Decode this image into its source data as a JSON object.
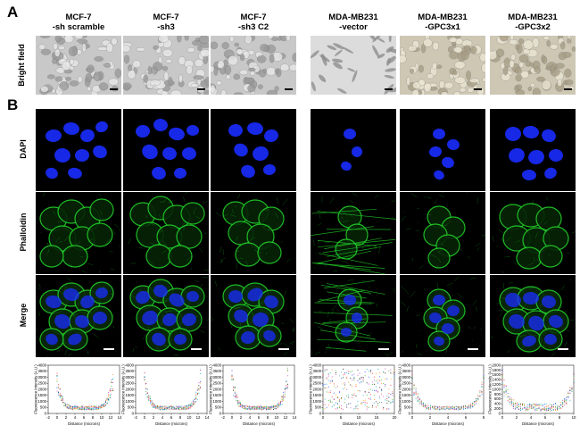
{
  "panel_labels": {
    "a": "A",
    "b": "B"
  },
  "columns": [
    {
      "header": "MCF-7\n-sh scramble"
    },
    {
      "header": "MCF-7\n-sh3"
    },
    {
      "header": "MCF-7\n-sh3 C2"
    },
    {
      "header": "MDA-MB231\n-vector"
    },
    {
      "header": "MDA-MB231\n-GPC3x1"
    },
    {
      "header": "MDA-MB231\n-GPC3x2"
    }
  ],
  "row_labels": {
    "bright_field": "Bright field",
    "dapi": "DAPI",
    "phalloidin": "Phalloidin",
    "merge": "Merge"
  },
  "colors": {
    "dapi": "#1a2cff",
    "phalloidin": "#22d02a",
    "micrograph_background": "#000000"
  },
  "chart_data": [
    {
      "type": "scatter",
      "panel": "MCF-7 -sh scramble",
      "xlabel": "Distance (microns)",
      "ylabel": "Fluorescence Intensity (A.U.)",
      "xlim": [
        -2,
        14
      ],
      "xticks": [
        "-2",
        "0",
        "2",
        "4",
        "6",
        "8",
        "10",
        "12",
        "14"
      ],
      "ylim": [
        0,
        4000
      ],
      "yticks": [
        "0",
        "500",
        "1000",
        "1500",
        "2000",
        "2500",
        "3000",
        "3500",
        "4000"
      ]
    },
    {
      "type": "scatter",
      "panel": "MCF-7 -sh3",
      "xlabel": "Distance (microns)",
      "ylabel": "Fluorescence Intensity (A.U.)",
      "xlim": [
        -2,
        14
      ],
      "xticks": [
        "-2",
        "0",
        "2",
        "4",
        "6",
        "8",
        "10",
        "12",
        "14"
      ],
      "ylim": [
        0,
        4000
      ],
      "yticks": [
        "0",
        "500",
        "1000",
        "1500",
        "2000",
        "2500",
        "3000",
        "3500",
        "4000"
      ]
    },
    {
      "type": "scatter",
      "panel": "MCF-7 -sh3 C2",
      "xlabel": "Distance (microns)",
      "ylabel": "Fluorescence Intensity (A.U.)",
      "xlim": [
        -2,
        14
      ],
      "xticks": [
        "-2",
        "0",
        "2",
        "4",
        "6",
        "8",
        "10",
        "12",
        "14"
      ],
      "ylim": [
        0,
        4000
      ],
      "yticks": [
        "0",
        "500",
        "1000",
        "1500",
        "2000",
        "2500",
        "3000",
        "3500",
        "4000"
      ]
    },
    {
      "type": "scatter",
      "panel": "MDA-MB231 -vector",
      "xlabel": "Distance (microns)",
      "ylabel": "Fluorescence Intensity (A.U.)",
      "xlim": [
        0,
        20
      ],
      "xticks": [
        "0",
        "5",
        "10",
        "15",
        "20"
      ],
      "ylim": [
        0,
        4000
      ],
      "yticks": [
        "0",
        "500",
        "1000",
        "1500",
        "2000",
        "2500",
        "3000",
        "3500",
        "4000"
      ]
    },
    {
      "type": "scatter",
      "panel": "MDA-MB231 -GPC3x1",
      "xlabel": "Distance (microns)",
      "ylabel": "Fluorescence Intensity (A.U.)",
      "xlim": [
        0,
        8
      ],
      "xticks": [
        "0",
        "2",
        "4",
        "6",
        "8"
      ],
      "ylim": [
        0,
        4000
      ],
      "yticks": [
        "0",
        "500",
        "1000",
        "1500",
        "2000",
        "2500",
        "3000",
        "3500",
        "4000"
      ]
    },
    {
      "type": "scatter",
      "panel": "MDA-MB231 -GPC3x2",
      "xlabel": "Distance (microns)",
      "ylabel": "Fluorescence Intensity (A.U.)",
      "xlim": [
        0,
        10
      ],
      "xticks": [
        "0",
        "2",
        "4",
        "6",
        "8",
        "10"
      ],
      "ylim": [
        0,
        2000
      ],
      "yticks": [
        "0",
        "200",
        "400",
        "600",
        "800",
        "1000",
        "1200",
        "1400",
        "1600",
        "1800",
        "2000"
      ]
    }
  ]
}
